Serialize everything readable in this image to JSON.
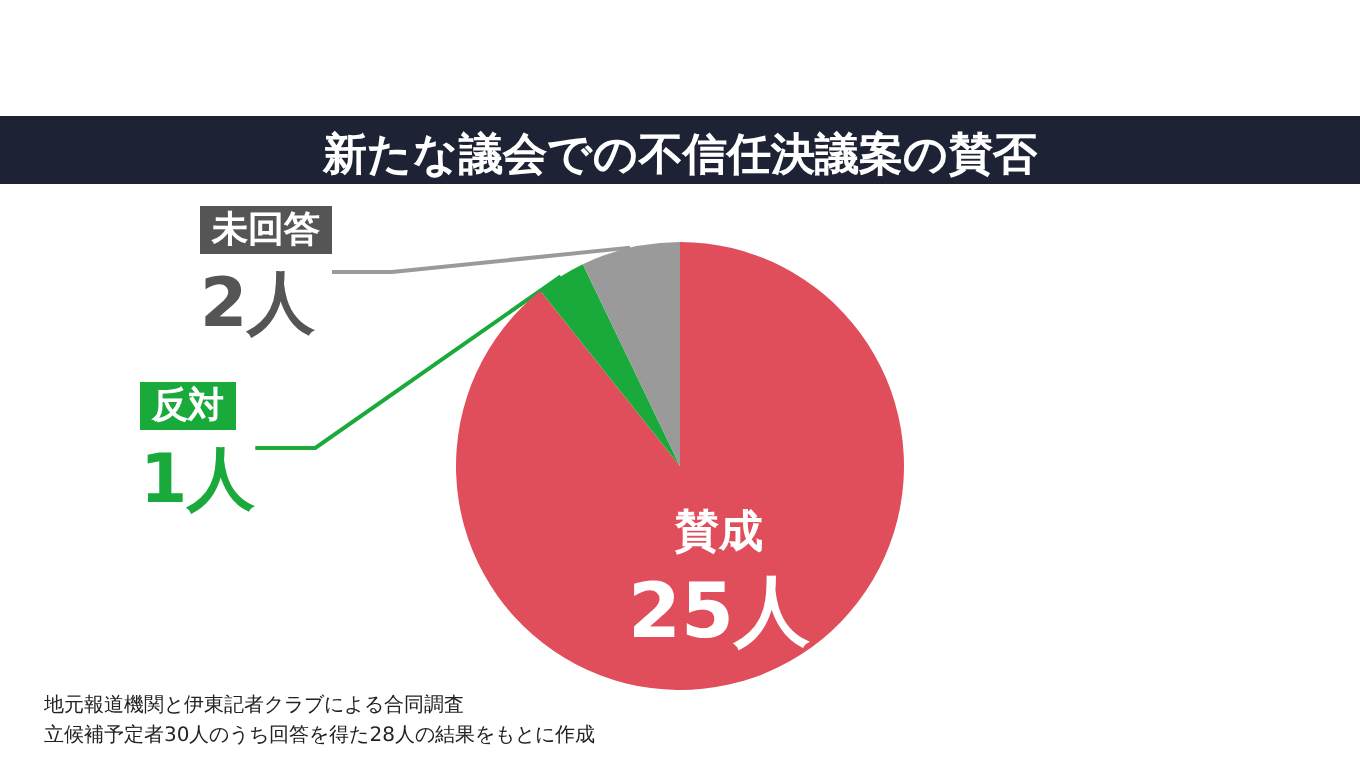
{
  "chart_data": {
    "type": "pie",
    "title": "新たな議会での不信任決議案の賛否",
    "categories": [
      "賛成",
      "反対",
      "未回答"
    ],
    "values": [
      25,
      1,
      2
    ],
    "colors": [
      "#e04e5c",
      "#1aaa3c",
      "#9a9a9a"
    ],
    "value_labels": [
      "25人",
      "1人",
      "2人"
    ],
    "legend": false,
    "annotations": [
      "地元報道機関と伊東記者クラブによる合同調査",
      "立候補予定者30人のうち回答を得た28人の結果をもとに作成"
    ]
  }
}
